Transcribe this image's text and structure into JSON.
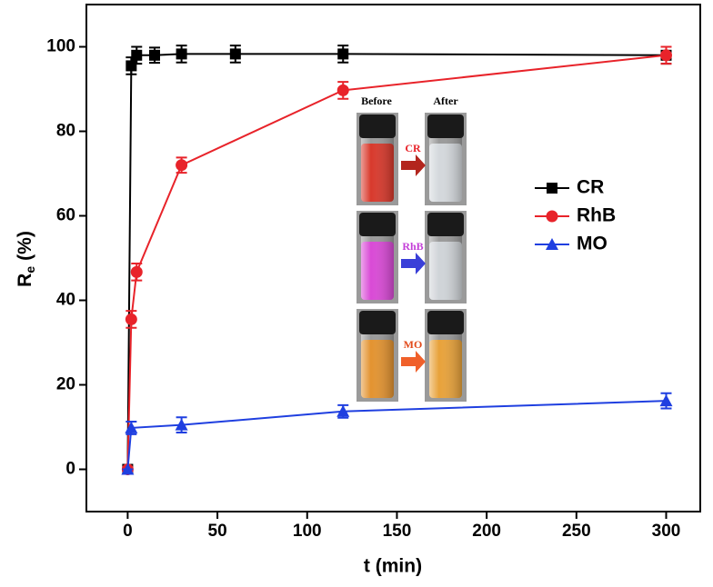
{
  "chart_data": {
    "type": "line",
    "x_label": "t (min)",
    "y_label": {
      "main": "R",
      "sub": "e",
      "unit": "(%)"
    },
    "xlim": [
      -23,
      319
    ],
    "ylim": [
      -10,
      110
    ],
    "xticks": [
      0,
      50,
      100,
      150,
      200,
      250,
      300
    ],
    "yticks": [
      0,
      20,
      40,
      60,
      80,
      100
    ],
    "legend": "right",
    "series": [
      {
        "name": "CR",
        "color": "#000000",
        "marker": "square",
        "x": [
          0,
          2,
          5,
          15,
          30,
          60,
          120,
          300
        ],
        "values": [
          0,
          95.5,
          98,
          98,
          98.3,
          98.3,
          98.3,
          98
        ],
        "errors": [
          0,
          2,
          2,
          1.8,
          2,
          2,
          2,
          2
        ]
      },
      {
        "name": "RhB",
        "color": "#e8232a",
        "marker": "circle",
        "x": [
          0,
          2,
          5,
          30,
          120,
          300
        ],
        "values": [
          0,
          35.5,
          46.7,
          72,
          89.7,
          98
        ],
        "errors": [
          0,
          2,
          2,
          1.8,
          2,
          2
        ]
      },
      {
        "name": "MO",
        "color": "#1f3fe0",
        "marker": "triangle",
        "x": [
          0,
          2,
          30,
          120,
          300
        ],
        "values": [
          0,
          9.8,
          10.5,
          13.7,
          16.2
        ],
        "errors": [
          0,
          1.5,
          1.8,
          1.5,
          1.8
        ]
      }
    ],
    "inset": {
      "before": "Before",
      "after": "After",
      "labels": [
        "CR",
        "RhB",
        "MO"
      ]
    }
  }
}
